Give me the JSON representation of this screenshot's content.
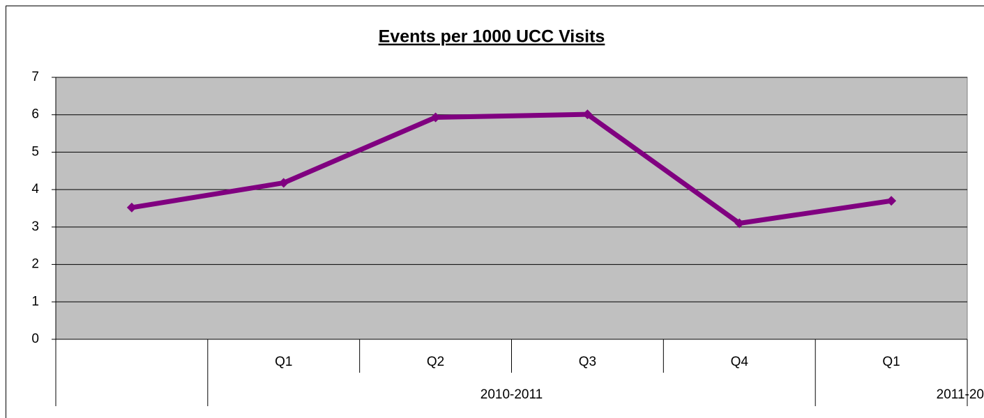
{
  "chart_data": {
    "type": "line",
    "title": "Events per 1000 UCC Visits",
    "categories": [
      null,
      "Q1",
      "Q2",
      "Q3",
      "Q4",
      "Q1"
    ],
    "category_groups": [
      "2010-2011",
      "2011-20"
    ],
    "series": [
      {
        "name": null,
        "color": "#800080",
        "values": [
          3.52,
          4.18,
          5.93,
          6.01,
          3.1,
          3.7
        ]
      }
    ],
    "ylim": [
      0,
      7
    ],
    "yticks": [
      0,
      1,
      2,
      3,
      4,
      5,
      6,
      7
    ],
    "grid": true,
    "plot_background": "#c0c0c0"
  }
}
